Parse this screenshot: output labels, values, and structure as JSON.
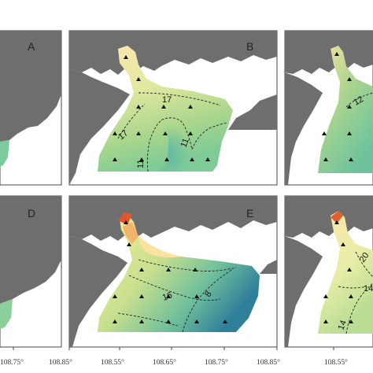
{
  "panels": [
    {
      "id": "A",
      "label": "A",
      "contours": []
    },
    {
      "id": "B",
      "label": "B",
      "contours": [
        "17",
        "17",
        "11",
        "11"
      ]
    },
    {
      "id": "C",
      "label": "",
      "contours": [
        "12"
      ]
    },
    {
      "id": "D",
      "label": "D",
      "contours": []
    },
    {
      "id": "E",
      "label": "E",
      "contours": [
        "16",
        "8"
      ]
    },
    {
      "id": "F",
      "label": "",
      "contours": [
        "20",
        "14",
        "14"
      ]
    }
  ],
  "x_ticks": [
    "108.75°",
    "108.85°",
    "108.55°",
    "108.65°",
    "108.75°",
    "108.85°",
    "108.55°"
  ],
  "colors": {
    "land": "#6e6e6e",
    "water": "#ffffff",
    "high": "#d9482b",
    "warm": "#fbe3a1",
    "mid": "#b7d98b",
    "teal": "#62b9a2",
    "deep": "#2f7f9b"
  },
  "station_marker": "triangle"
}
